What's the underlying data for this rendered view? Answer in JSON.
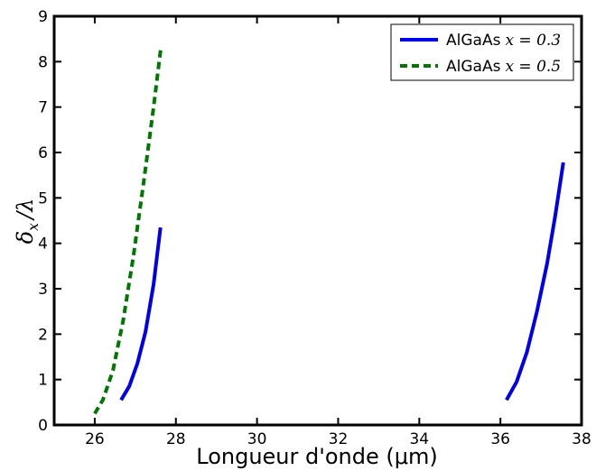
{
  "chart_data": {
    "type": "line",
    "xlabel": "Longueur d'onde (μm)",
    "ylabel_main": "δ",
    "ylabel_sub": "x",
    "ylabel_tail": "/λ",
    "xlim": [
      25,
      38
    ],
    "ylim": [
      0,
      9
    ],
    "x_ticks": [
      26,
      28,
      30,
      32,
      34,
      36,
      38
    ],
    "y_ticks": [
      0,
      1,
      2,
      3,
      4,
      5,
      6,
      7,
      8,
      9
    ],
    "grid": false,
    "legend_position": "top-right",
    "series": [
      {
        "name_text": "AlGaAs",
        "name_math": "x = 0.3",
        "color": "#0000ee",
        "style": "solid",
        "segments": [
          [
            [
              26.65,
              0.55
            ],
            [
              26.85,
              0.85
            ],
            [
              27.05,
              1.35
            ],
            [
              27.25,
              2.05
            ],
            [
              27.45,
              3.1
            ],
            [
              27.62,
              4.35
            ]
          ],
          [
            [
              36.15,
              0.55
            ],
            [
              36.4,
              0.95
            ],
            [
              36.65,
              1.6
            ],
            [
              36.9,
              2.5
            ],
            [
              37.15,
              3.55
            ],
            [
              37.35,
              4.6
            ],
            [
              37.55,
              5.78
            ]
          ]
        ]
      },
      {
        "name_text": "AlGaAs",
        "name_math": "x = 0.5",
        "color": "#007700",
        "style": "dashed",
        "segments": [
          [
            [
              26.0,
              0.25
            ],
            [
              26.2,
              0.55
            ],
            [
              26.45,
              1.2
            ],
            [
              26.7,
              2.3
            ],
            [
              26.95,
              3.7
            ],
            [
              27.2,
              5.3
            ],
            [
              27.45,
              7.0
            ],
            [
              27.63,
              8.3
            ]
          ]
        ]
      }
    ]
  }
}
